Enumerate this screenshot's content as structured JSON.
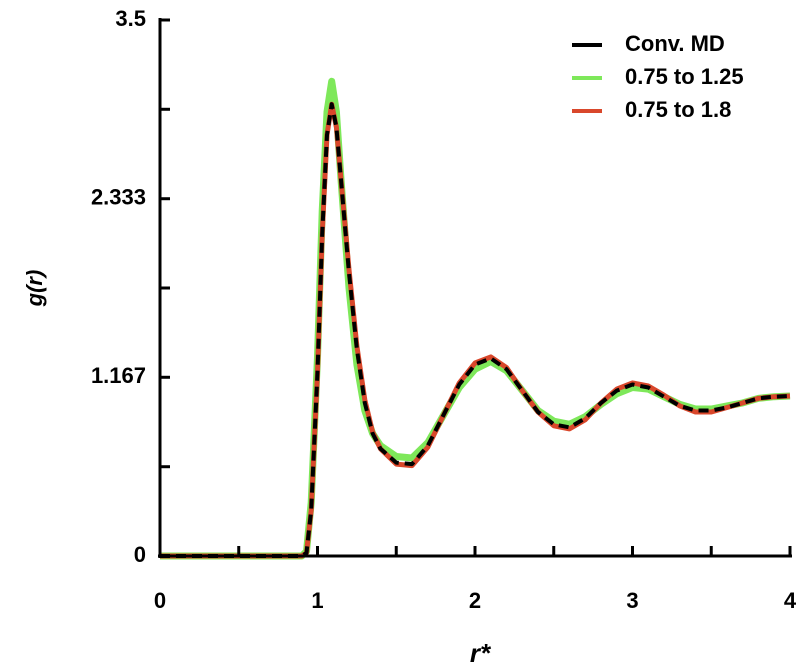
{
  "chart_data": {
    "type": "line",
    "x_label": "r*",
    "y_label": "g(r)",
    "x": [
      0,
      0.5,
      0.9,
      0.93,
      0.96,
      1.0,
      1.03,
      1.06,
      1.09,
      1.12,
      1.15,
      1.2,
      1.25,
      1.3,
      1.35,
      1.4,
      1.5,
      1.6,
      1.7,
      1.8,
      1.9,
      2.0,
      2.1,
      2.2,
      2.3,
      2.4,
      2.5,
      2.6,
      2.7,
      2.8,
      2.9,
      3.0,
      3.1,
      3.2,
      3.3,
      3.4,
      3.5,
      3.6,
      3.7,
      3.8,
      3.9,
      4.0
    ],
    "series": [
      {
        "name": "0.75 to 1.25",
        "color": "#7ee85a",
        "width": 7,
        "dashed": false,
        "values": [
          0,
          0,
          0,
          0.03,
          0.35,
          1.3,
          2.25,
          2.9,
          3.1,
          2.9,
          2.45,
          1.75,
          1.25,
          0.95,
          0.8,
          0.72,
          0.65,
          0.64,
          0.74,
          0.92,
          1.1,
          1.22,
          1.27,
          1.21,
          1.08,
          0.95,
          0.88,
          0.86,
          0.91,
          0.99,
          1.06,
          1.1,
          1.09,
          1.04,
          0.99,
          0.96,
          0.96,
          0.98,
          1.0,
          1.03,
          1.04,
          1.045
        ]
      },
      {
        "name": "0.75 to 1.8",
        "color": "#d9472b",
        "width": 5,
        "dashed": false,
        "values": [
          0,
          0,
          0,
          0.02,
          0.3,
          1.2,
          2.1,
          2.75,
          2.95,
          2.8,
          2.45,
          1.87,
          1.37,
          1.02,
          0.81,
          0.7,
          0.6,
          0.59,
          0.71,
          0.92,
          1.13,
          1.26,
          1.3,
          1.23,
          1.08,
          0.94,
          0.85,
          0.83,
          0.89,
          1.0,
          1.09,
          1.13,
          1.11,
          1.05,
          0.98,
          0.94,
          0.94,
          0.97,
          1.0,
          1.03,
          1.04,
          1.045
        ]
      },
      {
        "name": "Conv. MD",
        "color": "#000000",
        "width": 4,
        "dashed": true,
        "values": [
          0,
          0,
          0,
          0.02,
          0.3,
          1.2,
          2.1,
          2.75,
          2.95,
          2.8,
          2.45,
          1.85,
          1.35,
          1.0,
          0.8,
          0.7,
          0.61,
          0.6,
          0.72,
          0.92,
          1.12,
          1.25,
          1.29,
          1.22,
          1.08,
          0.94,
          0.86,
          0.84,
          0.9,
          1.0,
          1.08,
          1.12,
          1.1,
          1.04,
          0.98,
          0.95,
          0.95,
          0.97,
          1.0,
          1.03,
          1.04,
          1.045
        ]
      }
    ],
    "legend_order": [
      2,
      0,
      1
    ],
    "legend": "upper right",
    "xlim": [
      0,
      4
    ],
    "xticks": [
      0,
      1,
      2,
      3,
      4
    ],
    "xminorticks": [
      0.5,
      1.5,
      2.5,
      3.5
    ],
    "ylim": [
      0,
      3.5
    ],
    "yticks": [
      0,
      1.167,
      2.333,
      3.5
    ],
    "yminorticks": [
      0.583,
      1.75,
      2.917
    ]
  }
}
